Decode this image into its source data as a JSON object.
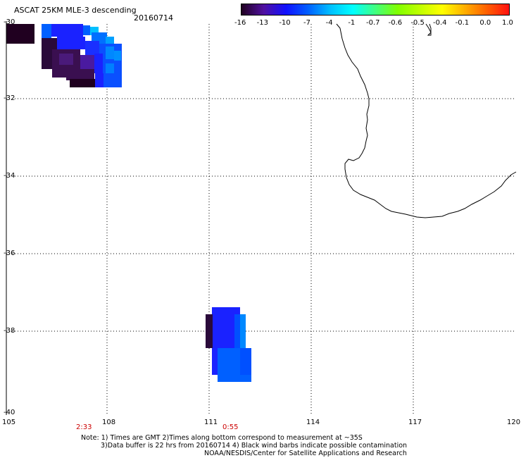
{
  "header": {
    "title": "ASCAT 25KM MLE-3 descending",
    "date": "20160714"
  },
  "colorbar": {
    "tick_labels": [
      "-16",
      "-13",
      "-10",
      "-7",
      "-4",
      "-1",
      "-0.7",
      "-0.6",
      "-0.5",
      "-0.4",
      "-0.1",
      "0.0",
      "1.0"
    ],
    "gradient": [
      "#200020",
      "#5010a0",
      "#1010ff",
      "#0060ff",
      "#00c0ff",
      "#00ffff",
      "#40ff80",
      "#80ff00",
      "#c0ff00",
      "#ffff00",
      "#ffb000",
      "#ff6000",
      "#ff1010"
    ]
  },
  "axes": {
    "y_labels": [
      "-30",
      "-32",
      "-34",
      "-36",
      "-38",
      "-40"
    ],
    "x_labels": [
      "105",
      "108",
      "111",
      "114",
      "117",
      "120"
    ]
  },
  "pass_times": [
    "2:33",
    "0:55"
  ],
  "notes": {
    "line1": "Note: 1) Times are GMT 2)Times along bottom correspond to measurement at ~35S",
    "line2": "3)Data buffer is 22 hrs from 20160714 4) Black wind barbs indicate possible contamination",
    "line3": "NOAA/NESDIS/Center for Satellite Applications and Research"
  },
  "colors": {
    "very_low": "#200020",
    "dark_purple": "#3a0f50",
    "purple": "#4a1a7a",
    "blue": "#1a22ff",
    "medium_blue": "#0050ff",
    "light_blue": "#0088ff",
    "cyan": "#00e0ff",
    "coastline": "#000000",
    "time_label": "#cc0000"
  }
}
